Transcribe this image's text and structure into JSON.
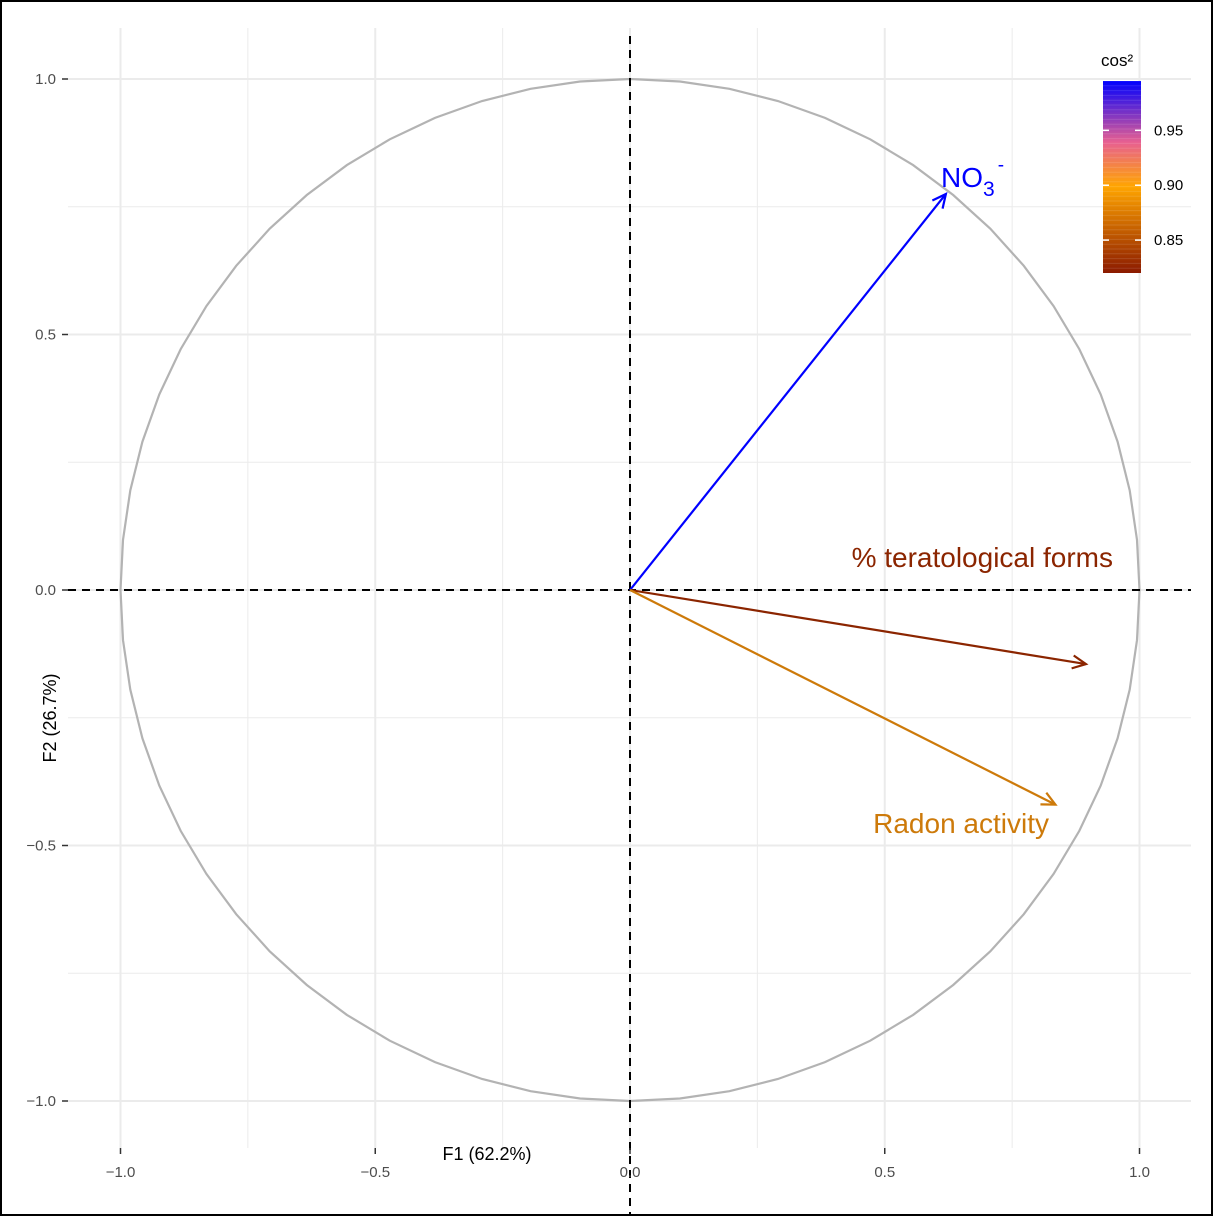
{
  "chart_data": {
    "type": "scatter",
    "subtype": "pca-correlation-circle",
    "title": "",
    "xlabel": "F1 (62.2%)",
    "ylabel": "F2 (26.7%)",
    "xlim": [
      -1.0,
      1.1
    ],
    "ylim": [
      -1.1,
      1.1
    ],
    "x_ticks": [
      -1.0,
      -0.5,
      0.0,
      0.5,
      1.0
    ],
    "y_ticks": [
      1.0,
      0.5,
      0.0,
      -0.5,
      -1.0
    ],
    "x_tick_labels": [
      "−1.0",
      "−0.5",
      "0.0",
      "0.5",
      "1.0"
    ],
    "y_tick_labels": [
      "1.0",
      "0.5",
      "0.0",
      "−0.5",
      "−1.0"
    ],
    "grid": true,
    "unit_circle": true,
    "zero_reference_lines": "dashed",
    "variables": [
      {
        "label": "NO3",
        "label_sub": "3",
        "label_sup": "-",
        "label_prefix": "NO",
        "x": 0.62,
        "y": 0.775,
        "cos2": 0.99,
        "color": "#0000ff"
      },
      {
        "label": "% teratological forms",
        "x": 0.895,
        "y": -0.145,
        "cos2": 0.82,
        "color": "#8b2500"
      },
      {
        "label": "Radon activity",
        "x": 0.835,
        "y": -0.42,
        "cos2": 0.875,
        "color": "#cd7a0a"
      }
    ],
    "legend": {
      "title": "cos²",
      "placement": "top-right",
      "ticks": [
        "0.95",
        "0.90",
        "0.85"
      ],
      "tick_values": [
        0.95,
        0.9,
        0.85
      ],
      "range": [
        0.82,
        0.995
      ],
      "colors": [
        "#8b1a00",
        "#ffa500",
        "#e86090",
        "#0000ff"
      ]
    }
  }
}
